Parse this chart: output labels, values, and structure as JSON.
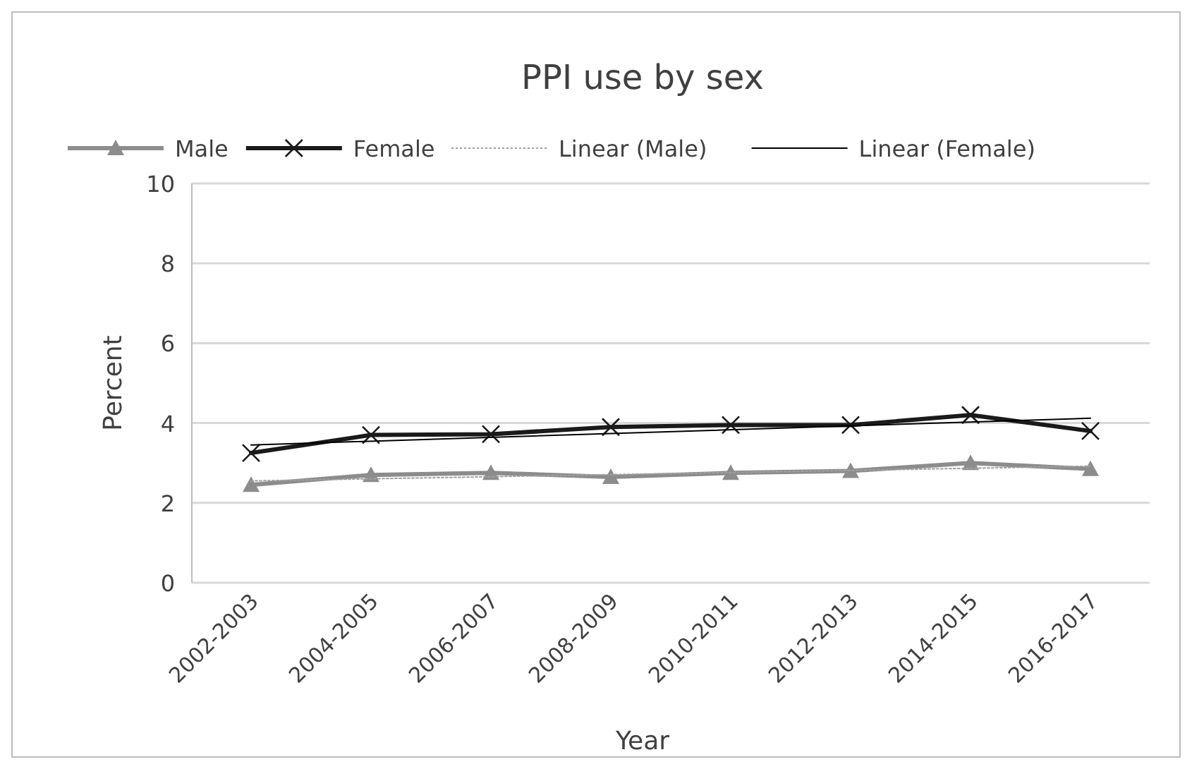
{
  "chart_data": {
    "type": "line",
    "title": "PPI use by sex",
    "xlabel": "Year",
    "ylabel": "Percent",
    "categories": [
      "2002-2003",
      "2004-2005",
      "2006-2007",
      "2008-2009",
      "2010-2011",
      "2012-2013",
      "2014-2015",
      "2016-2017"
    ],
    "series": [
      {
        "name": "Male",
        "color": "#8c8c8c",
        "marker": "triangle",
        "values": [
          2.45,
          2.7,
          2.75,
          2.65,
          2.75,
          2.8,
          3.0,
          2.85
        ]
      },
      {
        "name": "Female",
        "color": "#1a1a1a",
        "marker": "cross",
        "values": [
          3.25,
          3.7,
          3.72,
          3.9,
          3.95,
          3.95,
          4.2,
          3.8
        ]
      },
      {
        "name": "Linear (Male)",
        "color": "#a0a0a0",
        "marker": "none",
        "line_style": "dotted",
        "x": [
          "2002-2003",
          "2016-2017"
        ],
        "values": [
          2.55,
          2.92
        ]
      },
      {
        "name": "Linear (Female)",
        "color": "#000000",
        "marker": "none",
        "line_style": "solid",
        "x": [
          "2002-2003",
          "2016-2017"
        ],
        "values": [
          3.45,
          4.12
        ]
      }
    ],
    "ylim": [
      0,
      10
    ],
    "yticks": [
      0,
      2,
      4,
      6,
      8,
      10
    ],
    "grid": "y",
    "legend": "top"
  }
}
